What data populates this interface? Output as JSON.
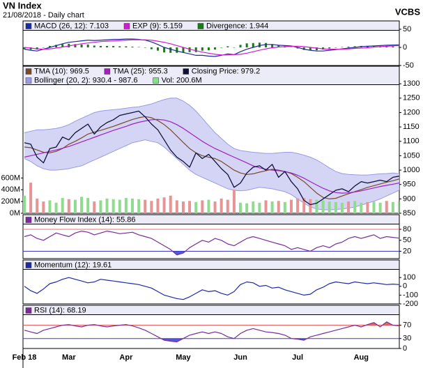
{
  "header": {
    "title": "VN Index",
    "subtitle": "21/08/2018 - Daily chart",
    "brand": "VCBS"
  },
  "chart_data": [
    {
      "type": "line",
      "ylim": [
        -50,
        73
      ],
      "yticks": [
        -50,
        0,
        50
      ],
      "series": [
        {
          "name": "MACD (26, 12): 7.103",
          "color": "#1c2a9c",
          "values": [
            -5,
            -8,
            -10,
            -5,
            0,
            5,
            10,
            14,
            16,
            18,
            20,
            19,
            20,
            21,
            22,
            22,
            23,
            23,
            22,
            20,
            15,
            8,
            0,
            -5,
            -10,
            -14,
            -18,
            -22,
            -22,
            -24,
            -25,
            -22,
            -18,
            -20,
            -12,
            -5,
            0,
            5,
            8,
            8,
            6,
            5,
            4,
            0,
            -5,
            -8,
            -10,
            -10,
            -8,
            -6,
            -4,
            -2,
            0,
            2,
            3,
            4,
            5,
            6,
            6.5,
            7.103
          ]
        },
        {
          "name": "EXP (9): 5.159",
          "color": "#d21ad2",
          "values": [
            0,
            -2,
            -4,
            -5,
            -4,
            -2,
            1,
            4,
            7,
            10,
            12,
            14,
            16,
            17,
            18,
            19,
            20,
            21,
            21,
            21,
            20,
            17,
            14,
            10,
            5,
            0,
            -5,
            -9,
            -13,
            -16,
            -19,
            -21,
            -21,
            -20,
            -19,
            -16,
            -12,
            -8,
            -4,
            -1,
            1,
            2,
            3,
            3,
            2,
            0,
            -2,
            -4,
            -5,
            -5,
            -5,
            -4,
            -3,
            -2,
            -1,
            1,
            2,
            3,
            4,
            5.159
          ]
        },
        {
          "name": "Divergence: 1.944",
          "color": "#1a7a1a",
          "kind": "bar",
          "values": [
            -5,
            -6,
            -6,
            0,
            4,
            7,
            9,
            10,
            9,
            8,
            8,
            5,
            4,
            4,
            4,
            3,
            3,
            2,
            1,
            -1,
            -5,
            -9,
            -14,
            -15,
            -15,
            -14,
            -13,
            -13,
            -9,
            -8,
            -6,
            -1,
            3,
            0,
            7,
            11,
            12,
            13,
            12,
            9,
            5,
            3,
            1,
            -3,
            -7,
            -8,
            -8,
            -6,
            -3,
            -1,
            1,
            2,
            3,
            4,
            4,
            3,
            3,
            3,
            2.5,
            1.944
          ]
        }
      ]
    },
    {
      "type": "line",
      "ylim": [
        850,
        1361
      ],
      "yticks": [
        850,
        900,
        950,
        1000,
        1050,
        1100,
        1150,
        1200,
        1250,
        1300
      ],
      "y2lim": [
        0,
        2500
      ],
      "y2ticks": [
        {
          "value": 0,
          "label": "0M"
        },
        {
          "value": 200,
          "label": "200M"
        },
        {
          "value": 400,
          "label": "400M"
        },
        {
          "value": 600,
          "label": "600M"
        }
      ],
      "series": [
        {
          "name": "TMA (10): 969.5",
          "color": "#7a4a2a",
          "values": [
            1080,
            1078,
            1070,
            1062,
            1060,
            1065,
            1075,
            1090,
            1100,
            1112,
            1125,
            1132,
            1138,
            1145,
            1152,
            1160,
            1168,
            1176,
            1182,
            1186,
            1182,
            1172,
            1158,
            1140,
            1118,
            1096,
            1075,
            1060,
            1050,
            1045,
            1040,
            1030,
            1015,
            1000,
            990,
            985,
            987,
            993,
            998,
            1003,
            1000,
            995,
            988,
            975,
            960,
            940,
            920,
            905,
            900,
            902,
            910,
            918,
            925,
            932,
            940,
            946,
            952,
            958,
            963,
            969.5
          ]
        },
        {
          "name": "TMA (25): 955.3",
          "color": "#a020c0",
          "values": [
            1045,
            1050,
            1055,
            1060,
            1065,
            1070,
            1076,
            1082,
            1090,
            1098,
            1106,
            1114,
            1122,
            1130,
            1138,
            1145,
            1152,
            1160,
            1166,
            1171,
            1175,
            1176,
            1174,
            1168,
            1158,
            1145,
            1130,
            1115,
            1100,
            1087,
            1075,
            1065,
            1055,
            1045,
            1035,
            1025,
            1015,
            1008,
            1003,
            1000,
            998,
            995,
            990,
            982,
            972,
            960,
            948,
            937,
            928,
            922,
            920,
            921,
            924,
            928,
            933,
            938,
            943,
            947,
            951,
            955.3
          ]
        },
        {
          "name": "Closing Price: 979.2",
          "color": "#10103c",
          "kind": "close",
          "values": [
            1095,
            1090,
            1045,
            1025,
            1075,
            1080,
            1115,
            1105,
            1130,
            1145,
            1160,
            1125,
            1150,
            1165,
            1175,
            1190,
            1195,
            1200,
            1205,
            1185,
            1160,
            1140,
            1105,
            1070,
            1045,
            1030,
            1010,
            1060,
            1040,
            1055,
            1030,
            1005,
            985,
            940,
            955,
            990,
            1010,
            1015,
            1000,
            1020,
            975,
            995,
            960,
            935,
            895,
            880,
            885,
            900,
            915,
            930,
            935,
            925,
            945,
            960,
            955,
            960,
            965,
            960,
            975,
            979.2
          ]
        },
        {
          "name": "Bollinger (20, 2): 930.4 - 987.6",
          "color": "#9a9ae6",
          "kind": "band",
          "upper": [
            1130,
            1135,
            1140,
            1140,
            1142,
            1145,
            1150,
            1158,
            1170,
            1180,
            1190,
            1200,
            1205,
            1208,
            1210,
            1212,
            1215,
            1218,
            1220,
            1225,
            1230,
            1238,
            1245,
            1250,
            1250,
            1240,
            1225,
            1205,
            1180,
            1155,
            1130,
            1110,
            1090,
            1075,
            1068,
            1065,
            1062,
            1060,
            1058,
            1058,
            1060,
            1062,
            1062,
            1058,
            1052,
            1045,
            1035,
            1022,
            1008,
            995,
            988,
            985,
            984,
            983,
            983,
            985,
            987,
            988,
            990,
            987.6
          ],
          "lower": [
            1040,
            1030,
            1015,
            1005,
            1000,
            1000,
            1002,
            1005,
            1010,
            1015,
            1025,
            1035,
            1045,
            1055,
            1065,
            1075,
            1085,
            1095,
            1100,
            1105,
            1100,
            1095,
            1080,
            1060,
            1040,
            1020,
            1000,
            985,
            975,
            965,
            955,
            945,
            935,
            930,
            928,
            930,
            935,
            940,
            938,
            935,
            930,
            925,
            915,
            900,
            885,
            872,
            865,
            862,
            862,
            863,
            865,
            868,
            872,
            878,
            885,
            892,
            900,
            910,
            920,
            930.4
          ]
        },
        {
          "name": "Vol: 200.6M",
          "color": "#8fdc8f",
          "kind": "volume",
          "axis": "y2",
          "up_color": "#8fdc8f",
          "down_color": "#e89494",
          "values": [
            300,
            520,
            250,
            200,
            220,
            180,
            260,
            240,
            230,
            280,
            260,
            200,
            220,
            250,
            240,
            230,
            260,
            250,
            240,
            230,
            210,
            250,
            270,
            300,
            220,
            200,
            210,
            190,
            220,
            230,
            200,
            250,
            230,
            400,
            180,
            170,
            200,
            180,
            220,
            200,
            210,
            190,
            230,
            250,
            260,
            240,
            230,
            220,
            200,
            190,
            180,
            200,
            210,
            180,
            190,
            200,
            180,
            210,
            190,
            200.6
          ]
        }
      ]
    },
    {
      "type": "line",
      "ylim": [
        0,
        120
      ],
      "yticks": [
        20,
        50,
        80
      ],
      "hlines": [
        {
          "value": 80,
          "color": "#e07070",
          "side": "above"
        },
        {
          "value": 20,
          "color": "#3a3ad0",
          "side": "below"
        }
      ],
      "series": [
        {
          "name": "Money Flow Index (14): 55.86",
          "color": "#7a2a9a",
          "values": [
            60,
            65,
            55,
            50,
            60,
            70,
            65,
            60,
            70,
            75,
            72,
            65,
            70,
            75,
            72,
            68,
            70,
            72,
            65,
            60,
            55,
            45,
            35,
            25,
            10,
            15,
            30,
            40,
            50,
            45,
            55,
            50,
            40,
            35,
            45,
            55,
            60,
            55,
            50,
            45,
            40,
            35,
            25,
            30,
            25,
            20,
            30,
            35,
            30,
            40,
            45,
            55,
            60,
            55,
            60,
            65,
            55,
            60,
            58,
            55.86
          ]
        }
      ]
    },
    {
      "type": "line",
      "ylim": [
        -200,
        300
      ],
      "yticks": [
        -200,
        -100,
        0,
        100
      ],
      "series": [
        {
          "name": "Momentum (12): 19.61",
          "color": "#1c2aa8",
          "values": [
            0,
            -50,
            -80,
            -30,
            30,
            50,
            80,
            100,
            80,
            60,
            40,
            50,
            80,
            70,
            60,
            50,
            40,
            30,
            20,
            0,
            -20,
            -60,
            -100,
            -120,
            -140,
            -150,
            -120,
            -80,
            -40,
            -60,
            -50,
            -80,
            -100,
            -60,
            20,
            50,
            40,
            0,
            10,
            -20,
            -10,
            -40,
            -60,
            -80,
            -100,
            -90,
            -40,
            -10,
            30,
            50,
            40,
            30,
            50,
            40,
            30,
            40,
            30,
            20,
            25,
            19.61
          ]
        }
      ]
    },
    {
      "type": "line",
      "ylim": [
        0,
        130
      ],
      "yticks": [
        0,
        30,
        70
      ],
      "hlines": [
        {
          "value": 70,
          "color": "#e05050",
          "side": "above"
        },
        {
          "value": 30,
          "color": "#3a3ad0",
          "side": "below"
        }
      ],
      "categories": [
        "Feb 18",
        null,
        null,
        null,
        null,
        null,
        null,
        "Mar",
        null,
        null,
        null,
        null,
        null,
        null,
        null,
        null,
        "Apr",
        null,
        null,
        null,
        null,
        null,
        null,
        null,
        null,
        "May",
        null,
        null,
        null,
        null,
        null,
        null,
        null,
        null,
        "Jun",
        null,
        null,
        null,
        null,
        null,
        null,
        null,
        null,
        "Jul",
        null,
        null,
        null,
        null,
        null,
        null,
        null,
        null,
        null,
        "Aug",
        null,
        null,
        null,
        null,
        null,
        null
      ],
      "series": [
        {
          "name": "RSI (14): 68.19",
          "color": "#7a2a9a",
          "values": [
            55,
            50,
            45,
            55,
            60,
            65,
            70,
            72,
            68,
            65,
            70,
            72,
            68,
            65,
            68,
            70,
            72,
            68,
            62,
            55,
            45,
            35,
            25,
            22,
            20,
            30,
            40,
            45,
            50,
            45,
            50,
            45,
            35,
            30,
            45,
            55,
            60,
            55,
            50,
            48,
            45,
            40,
            30,
            28,
            25,
            35,
            40,
            45,
            50,
            55,
            60,
            65,
            70,
            65,
            72,
            78,
            65,
            80,
            70,
            68.19
          ]
        }
      ]
    }
  ]
}
